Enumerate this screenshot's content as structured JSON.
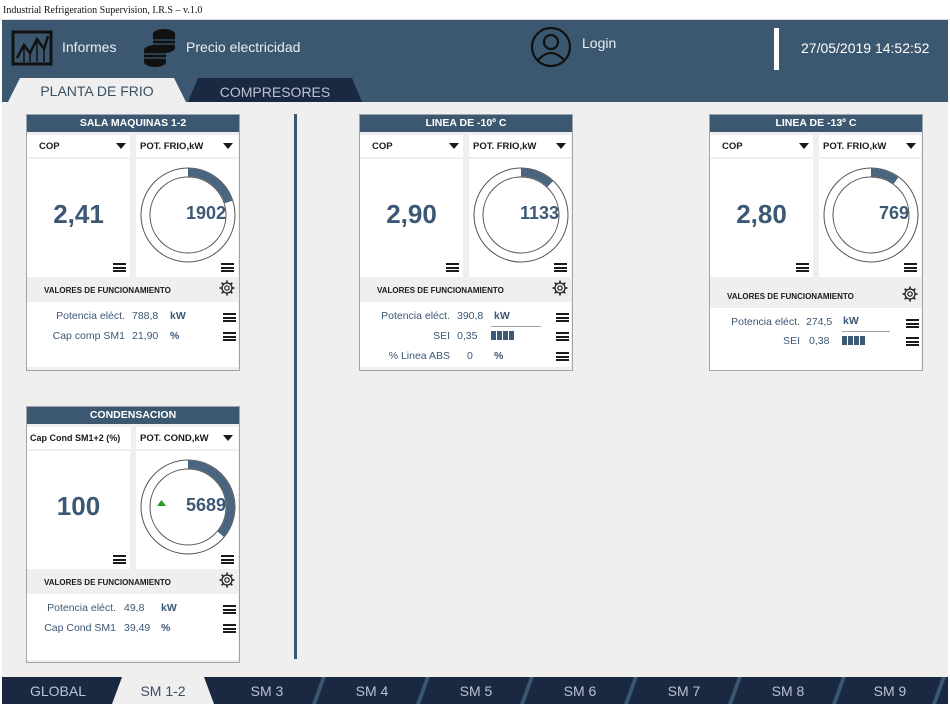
{
  "window": {
    "title": "Industrial Refrigeration Supervision, I.R.S – v.1.0"
  },
  "header": {
    "informes_label": "Informes",
    "precio_label": "Precio electricidad",
    "login_label": "Login",
    "datetime": "27/05/2019 14:52:52"
  },
  "top_tabs": [
    "PLANTA DE FRIO",
    "COMPRESORES"
  ],
  "cards": {
    "sala": {
      "title": "SALA MAQUINAS 1-2",
      "left_select": "COP",
      "right_select": "POT. FRIO,kW",
      "big_value": "2,41",
      "gauge_value": "1902",
      "gauge_fraction": 0.2,
      "section_label": "VALORES DE FUNCIONAMIENTO",
      "params": [
        {
          "label": "Potencia eléct.",
          "value": "788,8",
          "unit": "kW"
        },
        {
          "label": "Cap comp SM1",
          "value": "21,90",
          "unit": "%"
        }
      ]
    },
    "linea10": {
      "title": "LINEA DE -10º C",
      "left_select": "COP",
      "right_select": "POT. FRIO,kW",
      "big_value": "2,90",
      "gauge_value": "1133",
      "gauge_fraction": 0.12,
      "section_label": "VALORES DE FUNCIONAMIENTO",
      "params": [
        {
          "label": "Potencia eléct.",
          "value": "390,8",
          "unit": "kW"
        },
        {
          "label": "SEI",
          "value": "0,35",
          "unit": ""
        },
        {
          "label": "% Linea ABS",
          "value": "0",
          "unit": "%"
        }
      ],
      "sei_level": 0.35
    },
    "linea13": {
      "title": "LINEA DE -13º C",
      "left_select": "COP",
      "right_select": "POT. FRIO,kW",
      "big_value": "2,80",
      "gauge_value": "769",
      "gauge_fraction": 0.1,
      "section_label": "VALORES DE FUNCIONAMIENTO",
      "params": [
        {
          "label": "Potencia eléct.",
          "value": "274,5",
          "unit": "kW"
        },
        {
          "label": "SEI",
          "value": "0,38",
          "unit": ""
        }
      ],
      "sei_level": 0.38
    },
    "cond": {
      "title": "CONDENSACION",
      "left_select": "Cap Cond SM1+2 (%)",
      "right_select": "POT. COND,kW",
      "big_value": "100",
      "gauge_value": "5689",
      "gauge_fraction": 0.36,
      "trend": "up",
      "section_label": "VALORES DE FUNCIONAMIENTO",
      "params": [
        {
          "label": "Potencia eléct.",
          "value": "49,8",
          "unit": "kW"
        },
        {
          "label": "Cap Cond SM1",
          "value": "39,49",
          "unit": "%"
        }
      ]
    }
  },
  "bottom_tabs": [
    "GLOBAL",
    "SM 1-2",
    "SM 3",
    "SM 4",
    "SM 5",
    "SM 6",
    "SM 7",
    "SM 8",
    "SM 9"
  ],
  "colors": {
    "primary": "#3c5870",
    "dark": "#1b2842",
    "value": "#3d5875",
    "trend_up": "#2a9a2a"
  }
}
